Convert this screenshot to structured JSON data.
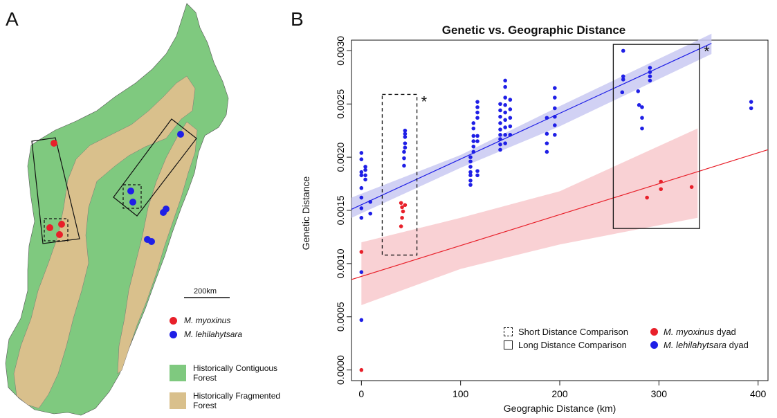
{
  "panel_a": {
    "letter": "A",
    "scale_label": "200km",
    "legend": {
      "species": [
        {
          "label": "M. myoxinus",
          "color": "#e8202a"
        },
        {
          "label": "M. lehilahytsara",
          "color": "#1f1fe6"
        }
      ],
      "forest": [
        {
          "label": "Historically Contiguous Forest",
          "color": "#7fc97f",
          "lines": [
            "Historically Contiguous",
            "Forest"
          ]
        },
        {
          "label": "Historically Fragmented Forest",
          "color": "#d9c08c",
          "lines": [
            "Historically Fragmented",
            "Forest"
          ]
        }
      ]
    }
  },
  "chart_data": {
    "type": "scatter",
    "panel_letter": "B",
    "title": "Genetic vs. Geographic Distance",
    "xlabel": "Geographic Distance (km)",
    "ylabel": "Genetic Distance",
    "xlim": [
      -10,
      410
    ],
    "ylim": [
      -0.0001,
      0.0031
    ],
    "xticks": [
      0,
      100,
      200,
      300,
      400
    ],
    "yticks": [
      "0.0000",
      "0.0005",
      "0.0010",
      "0.0015",
      "0.0020",
      "0.0025",
      "0.0030"
    ],
    "colors": {
      "myoxinus": "#e8202a",
      "lehilahytsara": "#1f1fe6",
      "band_myoxinus": "#f8c9cc",
      "band_lehilahytsara": "#c9c9f2"
    },
    "series": [
      {
        "name": "M. myoxinus dyad",
        "color": "#e8202a",
        "points": [
          [
            0,
            0.0
          ],
          [
            0,
            0.00111
          ],
          [
            40,
            0.00157
          ],
          [
            41,
            0.00153
          ],
          [
            42,
            0.00149
          ],
          [
            41,
            0.00143
          ],
          [
            40,
            0.00135
          ],
          [
            44,
            0.00155
          ],
          [
            288,
            0.00162
          ],
          [
            302,
            0.00177
          ],
          [
            302,
            0.0017
          ],
          [
            333,
            0.00172
          ]
        ],
        "fit": {
          "x0": -10,
          "y0": 0.00085,
          "x1": 410,
          "y1": 0.00207
        },
        "band_upper": [
          [
            0,
            0.0012
          ],
          [
            100,
            0.00143
          ],
          [
            200,
            0.00168
          ],
          [
            339,
            0.00227
          ]
        ],
        "band_lower": [
          [
            0,
            0.00061
          ],
          [
            100,
            0.00095
          ],
          [
            200,
            0.00118
          ],
          [
            339,
            0.00143
          ]
        ]
      },
      {
        "name": "M. lehilahytsara dyad",
        "color": "#1f1fe6",
        "points": [
          [
            0,
            0.00047
          ],
          [
            0,
            0.00092
          ],
          [
            0,
            0.00143
          ],
          [
            0,
            0.00152
          ],
          [
            0,
            0.00162
          ],
          [
            0,
            0.00171
          ],
          [
            0,
            0.00183
          ],
          [
            0,
            0.00186
          ],
          [
            0,
            0.00198
          ],
          [
            0,
            0.00204
          ],
          [
            4,
            0.00179
          ],
          [
            4,
            0.00183
          ],
          [
            4,
            0.00188
          ],
          [
            4,
            0.00191
          ],
          [
            9,
            0.00158
          ],
          [
            9,
            0.00147
          ],
          [
            43,
            0.00192
          ],
          [
            43,
            0.00199
          ],
          [
            43,
            0.00205
          ],
          [
            44,
            0.00209
          ],
          [
            44,
            0.00213
          ],
          [
            44,
            0.00219
          ],
          [
            44,
            0.00222
          ],
          [
            44,
            0.00225
          ],
          [
            110,
            0.00174
          ],
          [
            110,
            0.00178
          ],
          [
            110,
            0.00183
          ],
          [
            110,
            0.00186
          ],
          [
            110,
            0.00191
          ],
          [
            110,
            0.00196
          ],
          [
            110,
            0.002
          ],
          [
            113,
            0.00205
          ],
          [
            113,
            0.0021
          ],
          [
            113,
            0.00215
          ],
          [
            113,
            0.0022
          ],
          [
            113,
            0.00227
          ],
          [
            113,
            0.00232
          ],
          [
            117,
            0.00183
          ],
          [
            117,
            0.00187
          ],
          [
            117,
            0.00215
          ],
          [
            117,
            0.0022
          ],
          [
            117,
            0.00237
          ],
          [
            117,
            0.00242
          ],
          [
            117,
            0.00247
          ],
          [
            117,
            0.00252
          ],
          [
            140,
            0.00207
          ],
          [
            140,
            0.00212
          ],
          [
            140,
            0.00217
          ],
          [
            140,
            0.00221
          ],
          [
            140,
            0.00226
          ],
          [
            140,
            0.00232
          ],
          [
            140,
            0.00238
          ],
          [
            140,
            0.00244
          ],
          [
            140,
            0.0025
          ],
          [
            145,
            0.00213
          ],
          [
            145,
            0.00221
          ],
          [
            145,
            0.00228
          ],
          [
            145,
            0.00235
          ],
          [
            145,
            0.00242
          ],
          [
            145,
            0.00249
          ],
          [
            145,
            0.00256
          ],
          [
            145,
            0.00266
          ],
          [
            145,
            0.00272
          ],
          [
            150,
            0.00221
          ],
          [
            150,
            0.00229
          ],
          [
            150,
            0.00237
          ],
          [
            150,
            0.00245
          ],
          [
            150,
            0.00254
          ],
          [
            187,
            0.00205
          ],
          [
            187,
            0.00213
          ],
          [
            187,
            0.00222
          ],
          [
            187,
            0.00237
          ],
          [
            195,
            0.00221
          ],
          [
            195,
            0.0023
          ],
          [
            195,
            0.00238
          ],
          [
            195,
            0.00246
          ],
          [
            195,
            0.00256
          ],
          [
            195,
            0.00265
          ],
          [
            263,
            0.00261
          ],
          [
            264,
            0.00273
          ],
          [
            264,
            0.00276
          ],
          [
            264,
            0.003
          ],
          [
            279,
            0.00262
          ],
          [
            280,
            0.00249
          ],
          [
            283,
            0.00247
          ],
          [
            283,
            0.00237
          ],
          [
            283,
            0.00227
          ],
          [
            291,
            0.00272
          ],
          [
            291,
            0.00276
          ],
          [
            291,
            0.0028
          ],
          [
            291,
            0.00284
          ],
          [
            393,
            0.00246
          ],
          [
            393,
            0.00252
          ]
        ],
        "fit": {
          "x0": -10,
          "y0": 0.00151,
          "x1": 353,
          "y1": 0.00307
        },
        "band_upper": [
          [
            -10,
            0.00162
          ],
          [
            100,
            0.00202
          ],
          [
            200,
            0.00248
          ],
          [
            353,
            0.00316
          ]
        ],
        "band_lower": [
          [
            -10,
            0.00143
          ],
          [
            100,
            0.0019
          ],
          [
            200,
            0.00229
          ],
          [
            353,
            0.00297
          ]
        ]
      }
    ],
    "boxes": [
      {
        "label": "Short Distance Comparison",
        "style": "dashed",
        "x": [
          21,
          56
        ],
        "y": [
          0.00108,
          0.00259
        ],
        "marker": "*"
      },
      {
        "label": "Long Distance Comparison",
        "style": "solid",
        "x": [
          254,
          341
        ],
        "y": [
          0.00133,
          0.00306
        ],
        "marker": "*"
      }
    ],
    "legend": {
      "boxes": [
        "Short Distance Comparison",
        "Long Distance Comparison"
      ],
      "series_suffix": "dyad",
      "species": [
        "M. myoxinus",
        "M. lehilahytsara"
      ]
    }
  }
}
